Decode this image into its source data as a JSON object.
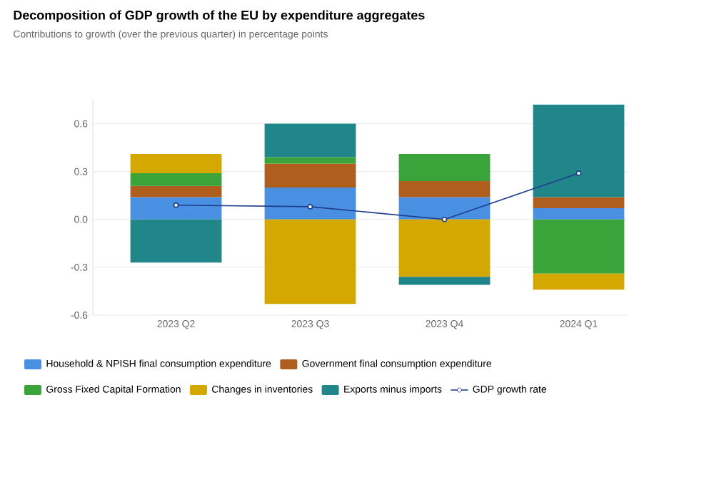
{
  "chart_data": {
    "type": "bar",
    "stacked": true,
    "title": "Decomposition of GDP growth of the EU by expenditure aggregates",
    "subtitle": "Contributions to growth (over the previous quarter) in percentage points",
    "categories": [
      "2023 Q2",
      "2023 Q3",
      "2023 Q4",
      "2024 Q1"
    ],
    "series": [
      {
        "name": "Household & NPISH final consumption expenditure",
        "color": "#4a90e2",
        "values": [
          0.14,
          0.2,
          0.14,
          0.07
        ]
      },
      {
        "name": "Government final consumption expenditure",
        "color": "#b05e1e",
        "values": [
          0.07,
          0.15,
          0.1,
          0.07
        ]
      },
      {
        "name": "Gross Fixed Capital Formation",
        "color": "#3aa33a",
        "values": [
          0.08,
          0.04,
          0.17,
          -0.34
        ]
      },
      {
        "name": "Changes in inventories",
        "color": "#d4a800",
        "values": [
          0.12,
          -0.53,
          -0.36,
          -0.1
        ]
      },
      {
        "name": "Exports minus imports",
        "color": "#20868a",
        "values": [
          -0.27,
          0.21,
          -0.05,
          0.58
        ]
      },
      {
        "name": "GDP growth rate",
        "type": "line",
        "color": "#1f3d8c",
        "marker": "circle",
        "values": [
          0.09,
          0.08,
          0.0,
          0.29
        ]
      }
    ],
    "ylim": [
      -0.6,
      0.75
    ],
    "yticks": [
      -0.6,
      -0.3,
      {
        "value": 0,
        "label": "0.0"
      },
      0.3,
      0.6
    ],
    "grid": "y",
    "legend": "bottom"
  }
}
